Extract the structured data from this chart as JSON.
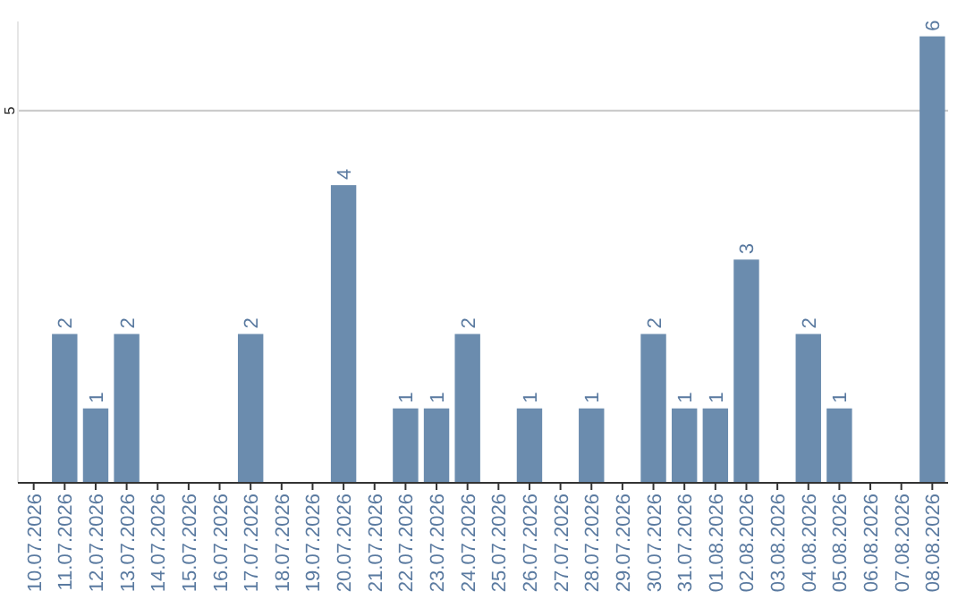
{
  "chart_data": {
    "type": "bar",
    "categories": [
      "10.07.2026",
      "11.07.2026",
      "12.07.2026",
      "13.07.2026",
      "14.07.2026",
      "15.07.2026",
      "16.07.2026",
      "17.07.2026",
      "18.07.2026",
      "19.07.2026",
      "20.07.2026",
      "21.07.2026",
      "22.07.2026",
      "23.07.2026",
      "24.07.2026",
      "25.07.2026",
      "26.07.2026",
      "27.07.2026",
      "28.07.2026",
      "29.07.2026",
      "30.07.2026",
      "31.07.2026",
      "01.08.2026",
      "02.08.2026",
      "03.08.2026",
      "04.08.2026",
      "05.08.2026",
      "06.08.2026",
      "07.08.2026",
      "08.08.2026"
    ],
    "values": [
      0,
      2,
      1,
      2,
      0,
      0,
      0,
      2,
      0,
      0,
      4,
      0,
      1,
      1,
      2,
      0,
      1,
      0,
      1,
      0,
      2,
      1,
      1,
      3,
      0,
      2,
      1,
      0,
      0,
      6
    ],
    "value_labels": [
      null,
      "2",
      "1",
      "2",
      null,
      null,
      null,
      "2",
      null,
      null,
      "4",
      null,
      "1",
      "1",
      "2",
      null,
      "1",
      null,
      "1",
      null,
      "2",
      "1",
      "1",
      "3",
      null,
      "2",
      "1",
      null,
      null,
      "6"
    ],
    "color": "#6b8cae",
    "ylim": [
      0,
      6.2
    ],
    "yticks": [
      5
    ],
    "grid": "y"
  }
}
